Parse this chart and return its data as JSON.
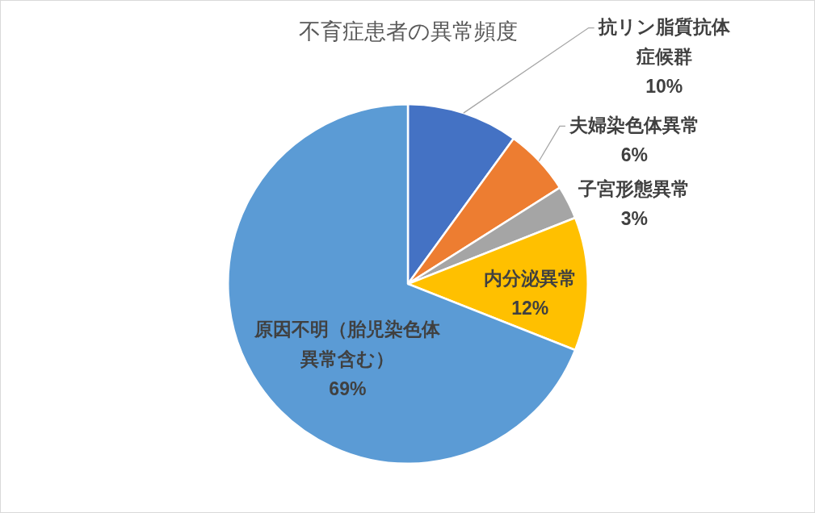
{
  "chart_data": {
    "type": "pie",
    "title": "不育症患者の異常頻度",
    "categories": [
      "抗リン脂質抗体症候群",
      "夫婦染色体異常",
      "子宮形態異常",
      "内分泌異常",
      "原因不明（胎児染色体異常含む）"
    ],
    "values": [
      10,
      6,
      3,
      12,
      69
    ],
    "colors": [
      "#4472c4",
      "#ed7d31",
      "#a5a5a5",
      "#ffc000",
      "#5b9bd5"
    ],
    "value_labels": [
      "10%",
      "6%",
      "3%",
      "12%",
      "69%"
    ]
  }
}
